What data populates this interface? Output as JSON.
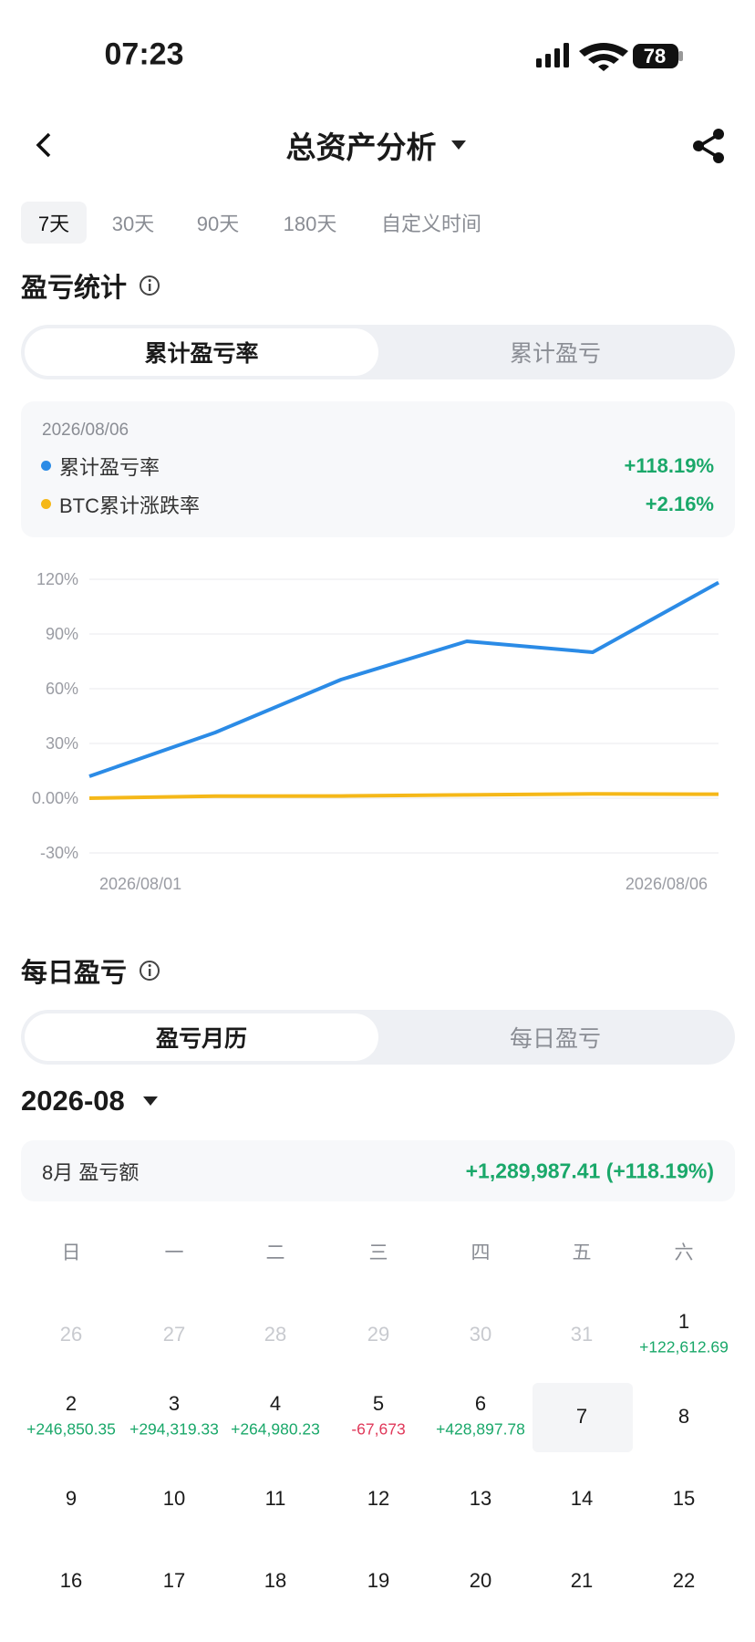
{
  "status_bar": {
    "time": "07:23",
    "battery": "78"
  },
  "header": {
    "title": "总资产分析"
  },
  "range_tabs": [
    "7天",
    "30天",
    "90天",
    "180天",
    "自定义时间"
  ],
  "pnl_stats": {
    "title": "盈亏统计",
    "toggle": [
      "累计盈亏率",
      "累计盈亏"
    ],
    "date": "2026/08/06",
    "values": [
      "+118.19%",
      "+2.16%"
    ]
  },
  "chart_data": {
    "type": "line",
    "categories": [
      "2026/08/01",
      null,
      null,
      null,
      null,
      "2026/08/06"
    ],
    "series": [
      {
        "name": "累计盈亏率",
        "color": "#2b8be6",
        "values": [
          12,
          36,
          65,
          86,
          80,
          118.19
        ]
      },
      {
        "name": "BTC累计涨跌率",
        "color": "#f5b819",
        "values": [
          0,
          1.1,
          1.2,
          1.8,
          2.4,
          2.16
        ]
      }
    ],
    "ylim": [
      -30,
      120
    ],
    "yticks": [
      {
        "value": -30,
        "label": "-30%"
      },
      {
        "value": 0,
        "label": "0.00%"
      },
      {
        "value": 30,
        "label": "30%"
      },
      {
        "value": 60,
        "label": "60%"
      },
      {
        "value": 90,
        "label": "90%"
      },
      {
        "value": 120,
        "label": "120%"
      }
    ],
    "grid": true
  },
  "daily": {
    "title": "每日盈亏",
    "toggle": [
      "盈亏月历",
      "每日盈亏"
    ],
    "month": "2026-08",
    "summary_label": "8月 盈亏额",
    "summary_value": "+1,289,987.41 (+118.19%)",
    "weekdays": [
      "日",
      "一",
      "二",
      "三",
      "四",
      "五",
      "六"
    ],
    "leading_days": [
      26,
      27,
      28,
      29,
      30,
      31
    ],
    "days": [
      {
        "day": 1,
        "pnl": "+122,612.69"
      },
      {
        "day": 2,
        "pnl": "+246,850.35"
      },
      {
        "day": 3,
        "pnl": "+294,319.33"
      },
      {
        "day": 4,
        "pnl": "+264,980.23"
      },
      {
        "day": 5,
        "pnl": "-67,673"
      },
      {
        "day": 6,
        "pnl": "+428,897.78"
      },
      {
        "day": 7
      },
      {
        "day": 8
      },
      {
        "day": 9
      },
      {
        "day": 10
      },
      {
        "day": 11
      },
      {
        "day": 12
      },
      {
        "day": 13
      },
      {
        "day": 14
      },
      {
        "day": 15
      },
      {
        "day": 16
      },
      {
        "day": 17
      },
      {
        "day": 18
      },
      {
        "day": 19
      },
      {
        "day": 20
      },
      {
        "day": 21
      },
      {
        "day": 22
      }
    ],
    "today": 7
  }
}
